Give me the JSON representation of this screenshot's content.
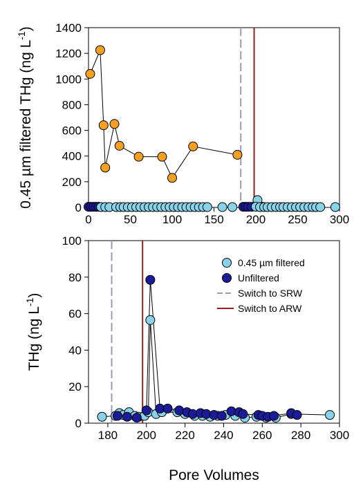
{
  "chart_data": [
    {
      "type": "scatter",
      "panel": "top",
      "ylabel": "0.45 µm filtered THg (ng L⁻¹)",
      "xlabel": "",
      "xlim": [
        0,
        300
      ],
      "ylim": [
        0,
        1400
      ],
      "xticks": [
        0,
        50,
        100,
        150,
        200,
        250,
        300
      ],
      "yticks": [
        0,
        200,
        400,
        600,
        800,
        1000,
        1200,
        1400
      ],
      "grid": false,
      "series": [
        {
          "name": "",
          "color": "#f5a020",
          "connected": true,
          "points": [
            [
              2,
              1040
            ],
            [
              14,
              1225
            ],
            [
              18,
              640
            ],
            [
              20,
              310
            ],
            [
              31,
              650
            ],
            [
              37,
              480
            ],
            [
              60,
              395
            ],
            [
              88,
              395
            ],
            [
              100,
              230
            ],
            [
              125,
              475
            ],
            [
              178,
              410
            ]
          ]
        },
        {
          "name": "",
          "color": "#1a1a9a",
          "connected": false,
          "points": [
            [
              0,
              5
            ],
            [
              3,
              5
            ],
            [
              6,
              5
            ],
            [
              9,
              5
            ],
            [
              12,
              5
            ],
            [
              185,
              5
            ],
            [
              188,
              5
            ],
            [
              191,
              5
            ],
            [
              195,
              5
            ],
            [
              204,
              5
            ],
            [
              208,
              5
            ]
          ]
        },
        {
          "name": "",
          "color": "#87d3ea",
          "connected": false,
          "points": [
            [
              15,
              3
            ],
            [
              20,
              3
            ],
            [
              25,
              3
            ],
            [
              33,
              3
            ],
            [
              38,
              3
            ],
            [
              42,
              3
            ],
            [
              47,
              3
            ],
            [
              52,
              3
            ],
            [
              57,
              3
            ],
            [
              62,
              3
            ],
            [
              67,
              3
            ],
            [
              72,
              3
            ],
            [
              77,
              3
            ],
            [
              82,
              3
            ],
            [
              87,
              3
            ],
            [
              92,
              3
            ],
            [
              97,
              3
            ],
            [
              102,
              3
            ],
            [
              107,
              3
            ],
            [
              112,
              3
            ],
            [
              117,
              3
            ],
            [
              122,
              3
            ],
            [
              127,
              3
            ],
            [
              132,
              3
            ],
            [
              137,
              3
            ],
            [
              142,
              3
            ],
            [
              160,
              3
            ],
            [
              172,
              3
            ],
            [
              202,
              57
            ],
            [
              200,
              6
            ],
            [
              205,
              3
            ],
            [
              210,
              3
            ],
            [
              214,
              3
            ],
            [
              219,
              3
            ],
            [
              224,
              3
            ],
            [
              229,
              3
            ],
            [
              233,
              3
            ],
            [
              238,
              3
            ],
            [
              243,
              3
            ],
            [
              248,
              3
            ],
            [
              253,
              3
            ],
            [
              258,
              3
            ],
            [
              263,
              3
            ],
            [
              268,
              3
            ],
            [
              272,
              3
            ],
            [
              277,
              3
            ],
            [
              295,
              3
            ]
          ]
        }
      ],
      "vlines": [
        {
          "x": 182,
          "style": "dashed",
          "color": "#9a9ab8"
        },
        {
          "x": 198,
          "style": "solid",
          "color": "#9b1c1c"
        }
      ]
    },
    {
      "type": "scatter",
      "panel": "bottom",
      "ylabel": "THg (ng L⁻¹)",
      "xlabel": "Pore Volumes",
      "xlim": [
        170,
        300
      ],
      "ylim": [
        0,
        100
      ],
      "xticks": [
        180,
        200,
        220,
        240,
        260,
        280,
        300
      ],
      "yticks": [
        0,
        20,
        40,
        60,
        80,
        100
      ],
      "grid": false,
      "legend_position": "top-right",
      "series": [
        {
          "name": "0.45 µm filtered",
          "color": "#87d3ea",
          "connected": true,
          "points": [
            [
              177,
              3.5
            ],
            [
              184,
              4
            ],
            [
              186,
              5.5
            ],
            [
              188,
              4.5
            ],
            [
              191,
              6
            ],
            [
              194,
              4
            ],
            [
              196,
              3.5
            ],
            [
              199,
              4
            ],
            [
              201,
              6
            ],
            [
              202,
              56.5
            ],
            [
              205,
              5
            ],
            [
              208,
              6
            ],
            [
              216,
              6
            ],
            [
              220,
              5
            ],
            [
              225,
              4
            ],
            [
              229,
              4
            ],
            [
              233,
              3.5
            ],
            [
              237,
              4
            ],
            [
              241,
              4.5
            ],
            [
              246,
              4
            ],
            [
              251,
              3
            ],
            [
              257,
              3.5
            ],
            [
              262,
              3
            ],
            [
              267,
              3
            ],
            [
              275,
              5
            ],
            [
              295,
              4.5
            ]
          ]
        },
        {
          "name": "Unfiltered",
          "color": "#1a1a9a",
          "connected": true,
          "points": [
            [
              185,
              4
            ],
            [
              190,
              3.5
            ],
            [
              195,
              3
            ],
            [
              200,
              7
            ],
            [
              202,
              78.5
            ],
            [
              207,
              8
            ],
            [
              211,
              8
            ],
            [
              217,
              7
            ],
            [
              221,
              6
            ],
            [
              224,
              5
            ],
            [
              228,
              5.5
            ],
            [
              231,
              5
            ],
            [
              235,
              4.5
            ],
            [
              239,
              4
            ],
            [
              244,
              6.5
            ],
            [
              248,
              6
            ],
            [
              250,
              5
            ],
            [
              258,
              4.5
            ],
            [
              260,
              4
            ],
            [
              263,
              3.5
            ],
            [
              266,
              4
            ],
            [
              275,
              5.5
            ],
            [
              278,
              4.5
            ]
          ]
        }
      ],
      "vlines": [
        {
          "name": "Switch to SRW",
          "x": 182,
          "style": "dashed",
          "color": "#9a9ab8"
        },
        {
          "name": "Switch to ARW",
          "x": 198,
          "style": "solid",
          "color": "#9b1c1c"
        }
      ]
    }
  ]
}
